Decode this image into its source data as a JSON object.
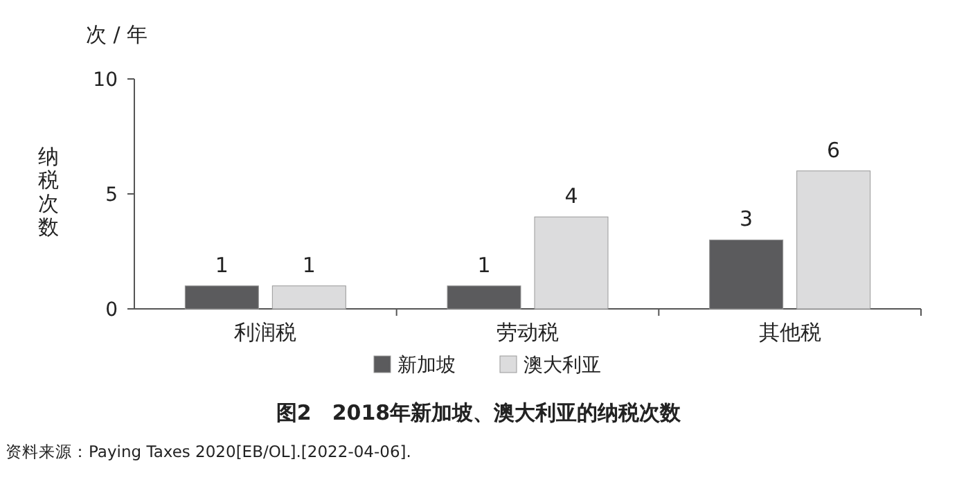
{
  "chart_data": {
    "type": "bar",
    "title": "图2　2018年新加坡、澳大利亚的纳税次数",
    "ylabel": "纳税次数",
    "annotations": [
      "次 / 年",
      "资料来源：Paying Taxes 2020[EB/OL].[2022-04-06]."
    ],
    "categories": [
      "利润税",
      "劳动税",
      "其他税"
    ],
    "series": [
      {
        "name": "新加坡",
        "color": "#5b5b5d",
        "values": [
          1,
          1,
          3
        ]
      },
      {
        "name": "澳大利亚",
        "color": "#dcdcdd",
        "values": [
          1,
          4,
          6
        ]
      }
    ],
    "ylim": [
      0,
      10
    ],
    "yticks": [
      0,
      5,
      10
    ],
    "data_labels": true,
    "legend": "bottom",
    "grid": false
  }
}
